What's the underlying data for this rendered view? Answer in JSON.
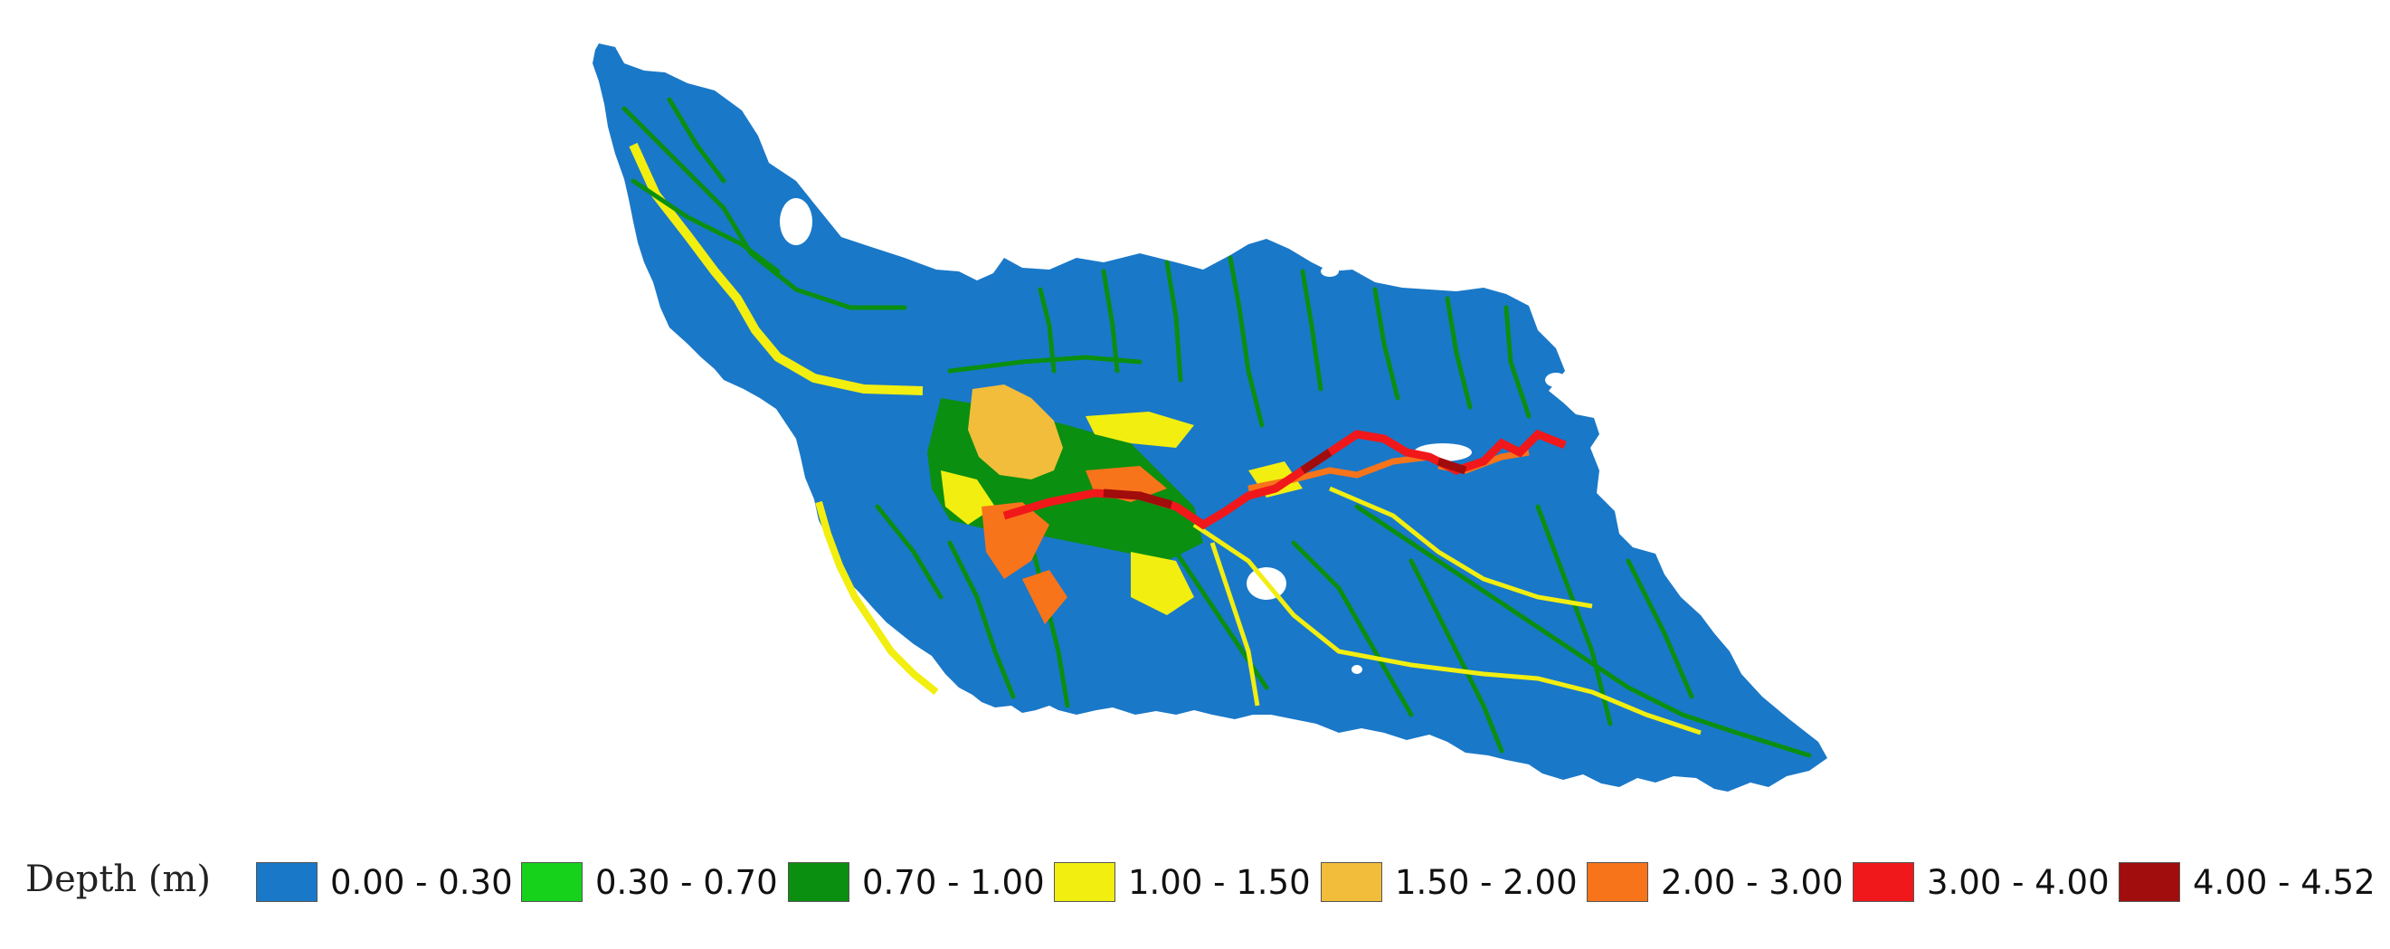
{
  "legend": {
    "title": "Depth (m)",
    "classes": [
      {
        "label": "0.00 - 0.30",
        "color": "#1a78c8"
      },
      {
        "label": "0.30 - 0.70",
        "color": "#16d21a"
      },
      {
        "label": "0.70 - 1.00",
        "color": "#0a8f10"
      },
      {
        "label": "1.00 - 1.50",
        "color": "#f2ee10"
      },
      {
        "label": "1.50 - 2.00",
        "color": "#f2bd3a"
      },
      {
        "label": "2.00 - 3.00",
        "color": "#f7741a"
      },
      {
        "label": "3.00 - 4.00",
        "color": "#f0181a"
      },
      {
        "label": "4.00 - 4.52",
        "color": "#a10c0c"
      }
    ]
  }
}
